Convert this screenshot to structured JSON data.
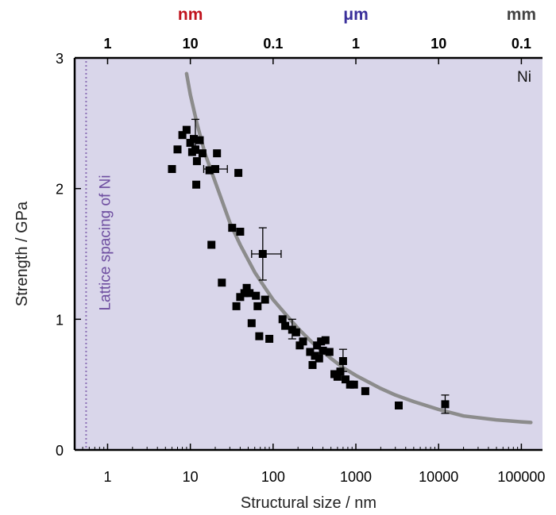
{
  "colors": {
    "plot_background": "#d9d6ea",
    "fit_curve": "#8c8c8c",
    "marker": "#000000",
    "unit_nm": "#c0141e",
    "unit_um": "#3a2f9a",
    "unit_mm": "#444444",
    "lattice_line": "#8b6fb5",
    "lattice_text": "#6e4ea0"
  },
  "chart_data": {
    "type": "scatter",
    "title": "",
    "xlabel": "Structural size / nm",
    "ylabel": "Strength / GPa",
    "xscale": "log",
    "xlim": [
      0.4,
      180000
    ],
    "ylim": [
      0,
      3
    ],
    "grid": false,
    "x_ticks": [
      1,
      10,
      100,
      1000,
      10000,
      100000
    ],
    "x_tick_labels": [
      "1",
      "10",
      "100",
      "1000",
      "10000",
      "100000"
    ],
    "y_ticks": [
      0,
      1,
      2,
      3
    ],
    "y_tick_labels": [
      "0",
      "1",
      "2",
      "3"
    ],
    "top_axis": {
      "ticks_nm": [
        1,
        10,
        100,
        1000,
        10000,
        100000
      ],
      "tick_labels": [
        "1",
        "10",
        "0.1",
        "1",
        "10",
        "0.1"
      ],
      "unit_labels": [
        {
          "text": "nm",
          "at_nm": 10,
          "color_key": "unit_nm"
        },
        {
          "text": "μm",
          "at_nm": 1000,
          "color_key": "unit_um"
        },
        {
          "text": "mm",
          "at_nm": 100000,
          "color_key": "unit_mm"
        }
      ]
    },
    "annotations": {
      "material": "Ni",
      "lattice_spacing_text": "Lattice spacing of Ni",
      "lattice_spacing_x_nm": 0.55
    },
    "fit_curve": {
      "x": [
        9,
        10,
        12,
        15,
        20,
        30,
        40,
        60,
        80,
        100,
        150,
        200,
        300,
        500,
        700,
        1000,
        2000,
        3000,
        5000,
        10000,
        20000,
        50000,
        100000,
        130000
      ],
      "y": [
        2.88,
        2.72,
        2.5,
        2.27,
        2.05,
        1.74,
        1.57,
        1.36,
        1.24,
        1.15,
        1.02,
        0.93,
        0.82,
        0.7,
        0.63,
        0.57,
        0.47,
        0.42,
        0.37,
        0.31,
        0.26,
        0.23,
        0.215,
        0.21
      ]
    },
    "series": [
      {
        "points": [
          {
            "x": 6,
            "y": 2.15
          },
          {
            "x": 7,
            "y": 2.3
          },
          {
            "x": 8,
            "y": 2.41
          },
          {
            "x": 9,
            "y": 2.45
          },
          {
            "x": 10,
            "y": 2.35
          },
          {
            "x": 10.5,
            "y": 2.28
          },
          {
            "x": 11,
            "y": 2.38
          },
          {
            "x": 11.5,
            "y": 2.3
          },
          {
            "x": 12,
            "y": 2.21
          },
          {
            "x": 11.8,
            "y": 2.03
          },
          {
            "x": 13,
            "y": 2.37
          },
          {
            "x": 14,
            "y": 2.27
          },
          {
            "x": 17,
            "y": 2.14
          },
          {
            "x": 20,
            "y": 2.15
          },
          {
            "x": 21,
            "y": 2.27
          },
          {
            "x": 38,
            "y": 2.12
          },
          {
            "x": 18,
            "y": 1.57
          },
          {
            "x": 24,
            "y": 1.28
          },
          {
            "x": 32,
            "y": 1.7
          },
          {
            "x": 40,
            "y": 1.67
          },
          {
            "x": 75,
            "y": 1.5
          },
          {
            "x": 36,
            "y": 1.1
          },
          {
            "x": 40,
            "y": 1.17
          },
          {
            "x": 45,
            "y": 1.2
          },
          {
            "x": 48,
            "y": 1.24
          },
          {
            "x": 52,
            "y": 1.2
          },
          {
            "x": 55,
            "y": 0.97
          },
          {
            "x": 62,
            "y": 1.18
          },
          {
            "x": 65,
            "y": 1.1
          },
          {
            "x": 68,
            "y": 0.87
          },
          {
            "x": 80,
            "y": 1.15
          },
          {
            "x": 90,
            "y": 0.85
          },
          {
            "x": 130,
            "y": 1.0
          },
          {
            "x": 140,
            "y": 0.95
          },
          {
            "x": 170,
            "y": 0.92
          },
          {
            "x": 190,
            "y": 0.9
          },
          {
            "x": 210,
            "y": 0.8
          },
          {
            "x": 230,
            "y": 0.83
          },
          {
            "x": 280,
            "y": 0.75
          },
          {
            "x": 300,
            "y": 0.65
          },
          {
            "x": 320,
            "y": 0.72
          },
          {
            "x": 340,
            "y": 0.8
          },
          {
            "x": 360,
            "y": 0.7
          },
          {
            "x": 380,
            "y": 0.83
          },
          {
            "x": 400,
            "y": 0.76
          },
          {
            "x": 430,
            "y": 0.84
          },
          {
            "x": 480,
            "y": 0.75
          },
          {
            "x": 550,
            "y": 0.58
          },
          {
            "x": 600,
            "y": 0.56
          },
          {
            "x": 650,
            "y": 0.6
          },
          {
            "x": 700,
            "y": 0.68
          },
          {
            "x": 750,
            "y": 0.54
          },
          {
            "x": 850,
            "y": 0.5
          },
          {
            "x": 950,
            "y": 0.5
          },
          {
            "x": 1300,
            "y": 0.45
          },
          {
            "x": 3300,
            "y": 0.34
          },
          {
            "x": 12000,
            "y": 0.35
          }
        ]
      }
    ],
    "error_bars": [
      {
        "x": 11.5,
        "y": 2.4,
        "x_low": 11.5,
        "x_high": 11.5,
        "y_low": 2.27,
        "y_high": 2.53
      },
      {
        "x": 20,
        "y": 2.15,
        "x_low": 14.5,
        "x_high": 28,
        "y_low": 2.15,
        "y_high": 2.15
      },
      {
        "x": 75,
        "y": 1.5,
        "x_low": 55,
        "x_high": 125,
        "y_low": 1.3,
        "y_high": 1.7
      },
      {
        "x": 170,
        "y": 0.92,
        "x_low": 170,
        "x_high": 170,
        "y_low": 0.85,
        "y_high": 1.0
      },
      {
        "x": 700,
        "y": 0.68,
        "x_low": 700,
        "x_high": 700,
        "y_low": 0.6,
        "y_high": 0.77
      },
      {
        "x": 12000,
        "y": 0.35,
        "x_low": 12000,
        "x_high": 12000,
        "y_low": 0.28,
        "y_high": 0.42
      }
    ]
  }
}
